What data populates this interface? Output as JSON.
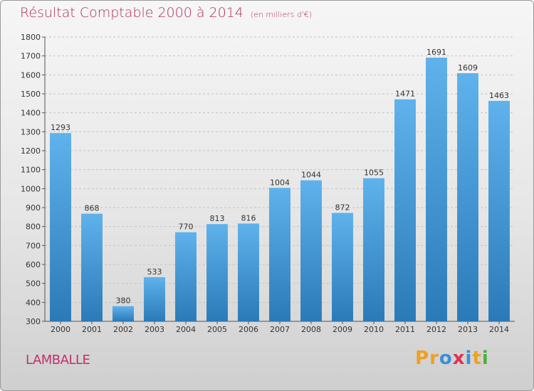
{
  "title": "Résultat Comptable 2000 à 2014",
  "subtitle": "(en milliers d'€)",
  "location": "LAMBALLE",
  "logo": {
    "letters": [
      "P",
      "r",
      "o",
      "x",
      "i",
      "t",
      "i"
    ],
    "colors": [
      "#f0a020",
      "#f0a020",
      "#3a8fd8",
      "#e03050",
      "#3a8fd8",
      "#f0a020",
      "#4ab040"
    ]
  },
  "colors": {
    "bar_top": "#5fb2ec",
    "bar_bottom": "#2a7ab8",
    "title": "#b03060"
  },
  "chart_data": {
    "type": "bar",
    "title": "Résultat Comptable 2000 à 2014",
    "categories": [
      "2000",
      "2001",
      "2002",
      "2003",
      "2004",
      "2005",
      "2006",
      "2007",
      "2008",
      "2009",
      "2010",
      "2011",
      "2012",
      "2013",
      "2014"
    ],
    "values": [
      1293,
      868,
      380,
      533,
      770,
      813,
      816,
      1004,
      1044,
      872,
      1055,
      1471,
      1691,
      1609,
      1463
    ],
    "ylim": [
      300,
      1800
    ],
    "yticks": [
      300,
      400,
      500,
      600,
      700,
      800,
      900,
      1000,
      1100,
      1200,
      1300,
      1400,
      1500,
      1600,
      1700,
      1800
    ],
    "grid": true
  }
}
